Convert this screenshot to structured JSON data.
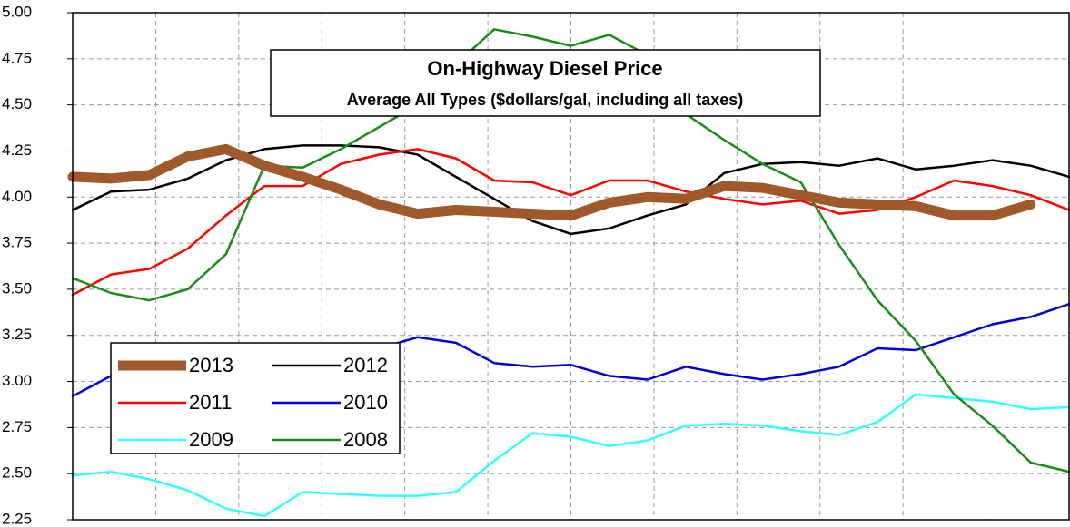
{
  "chart_data": {
    "type": "line",
    "title": "On-Highway Diesel Price",
    "subtitle": "Average All Types ($dollars/gal, including all taxes)",
    "ylim": [
      2.25,
      5.0
    ],
    "yticks": [
      2.25,
      {
        "value": 2.5,
        "label": "2.50"
      },
      2.75,
      {
        "value": 3.0,
        "label": "3.00"
      },
      3.25,
      {
        "value": 3.5,
        "label": "3.50"
      },
      3.75,
      {
        "value": 4.0,
        "label": "4.00"
      },
      4.25,
      {
        "value": 4.5,
        "label": "4.50"
      },
      4.75,
      {
        "value": 5.0,
        "label": "5.00"
      }
    ],
    "grid": true,
    "series": [
      {
        "name": "2013",
        "color": "#a0592a",
        "width": 11,
        "values": [
          4.11,
          4.1,
          4.12,
          4.22,
          4.26,
          4.17,
          4.11,
          4.04,
          3.96,
          3.91,
          3.93,
          3.92,
          3.91,
          3.9,
          3.97,
          4.0,
          3.99,
          4.06,
          4.05,
          4.01,
          3.97,
          3.96,
          3.95,
          3.9,
          3.9,
          3.96
        ]
      },
      {
        "name": "2012",
        "color": "#000000",
        "width": 2.5,
        "values": [
          3.93,
          4.03,
          4.04,
          4.1,
          4.2,
          4.26,
          4.28,
          4.28,
          4.27,
          4.23,
          4.11,
          3.99,
          3.87,
          3.8,
          3.83,
          3.9,
          3.96,
          4.13,
          4.18,
          4.19,
          4.17,
          4.21,
          4.15,
          4.17,
          4.2,
          4.17,
          4.11
        ]
      },
      {
        "name": "2011",
        "color": "#ff0000",
        "width": 2.5,
        "values": [
          3.47,
          3.58,
          3.61,
          3.72,
          3.9,
          4.06,
          4.06,
          4.18,
          4.23,
          4.26,
          4.21,
          4.09,
          4.08,
          4.01,
          4.09,
          4.09,
          4.03,
          3.99,
          3.96,
          3.98,
          3.91,
          3.93,
          4.0,
          4.09,
          4.06,
          4.01,
          3.93
        ]
      },
      {
        "name": "2010",
        "color": "#0000dd",
        "width": 2.5,
        "values": [
          2.92,
          3.03,
          3.03,
          3.05,
          3.08,
          3.1,
          3.12,
          3.15,
          3.18,
          3.24,
          3.21,
          3.1,
          3.08,
          3.09,
          3.03,
          3.01,
          3.08,
          3.04,
          3.01,
          3.04,
          3.08,
          3.18,
          3.17,
          3.24,
          3.31,
          3.35,
          3.42
        ]
      },
      {
        "name": "2009",
        "color": "#33ffff",
        "width": 2.5,
        "values": [
          2.49,
          2.51,
          2.47,
          2.41,
          2.31,
          2.27,
          2.4,
          2.39,
          2.38,
          2.38,
          2.4,
          2.57,
          2.72,
          2.7,
          2.65,
          2.68,
          2.76,
          2.77,
          2.76,
          2.73,
          2.71,
          2.78,
          2.93,
          2.91,
          2.89,
          2.85,
          2.86
        ]
      },
      {
        "name": "2008",
        "color": "#1a8c1a",
        "width": 2.5,
        "values": [
          3.56,
          3.48,
          3.44,
          3.5,
          3.69,
          4.17,
          4.16,
          4.26,
          4.38,
          4.5,
          4.72,
          4.91,
          4.87,
          4.82,
          4.88,
          4.77,
          4.45,
          4.31,
          4.18,
          4.08,
          3.74,
          3.44,
          3.22,
          2.93,
          2.76,
          2.56,
          2.51
        ]
      }
    ]
  }
}
